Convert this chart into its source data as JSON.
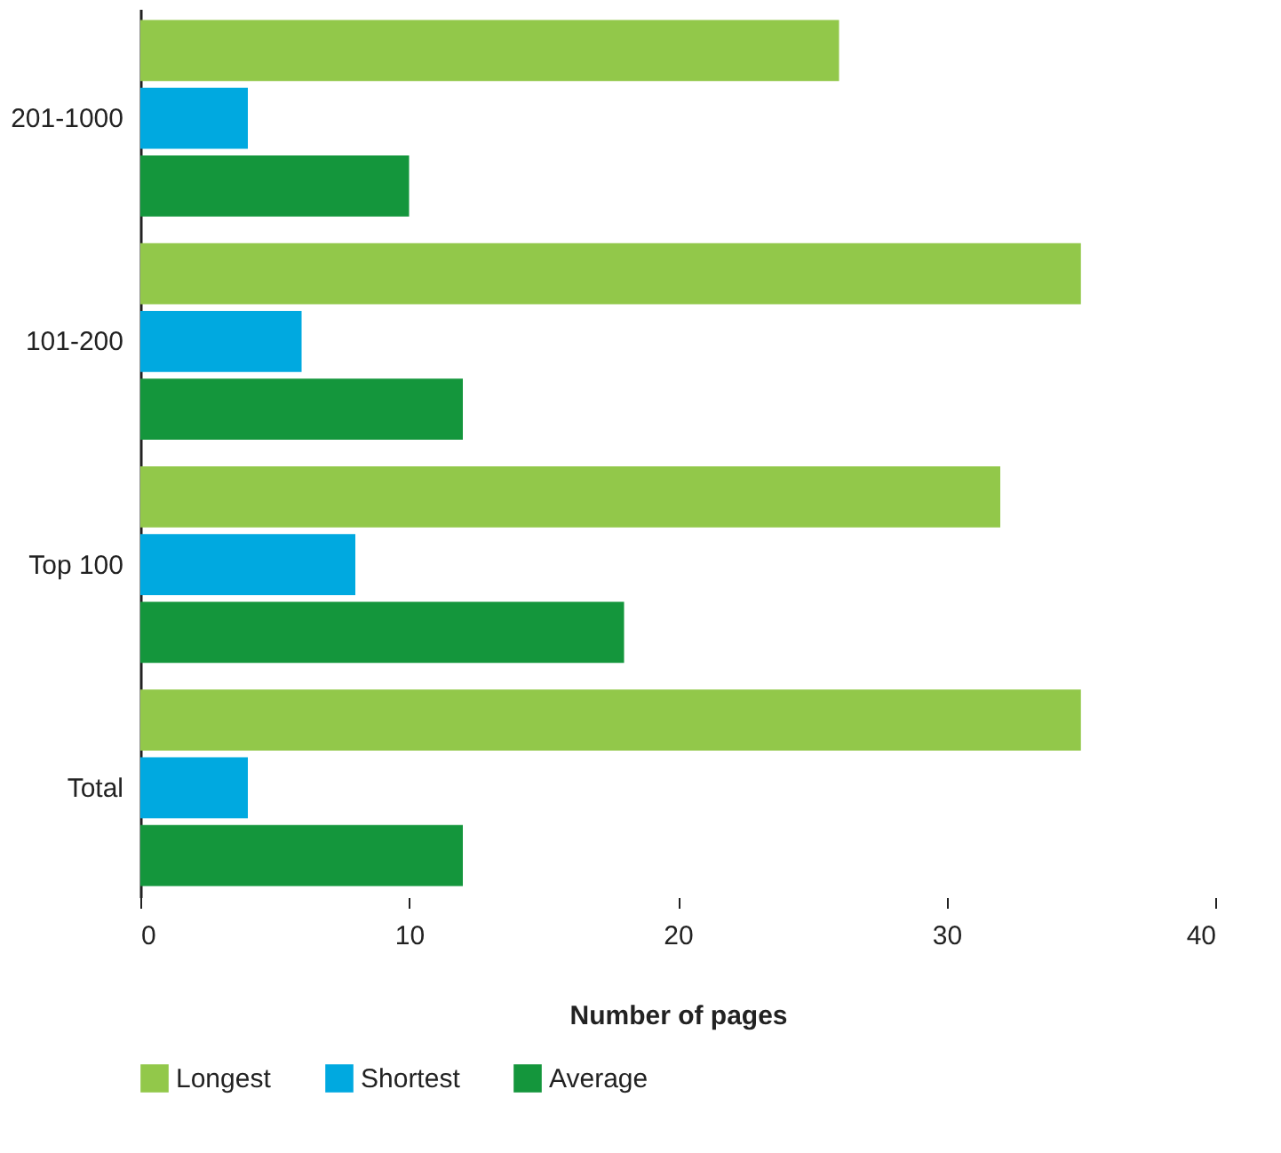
{
  "chart_data": {
    "type": "bar",
    "orientation": "horizontal",
    "categories": [
      "201-1000",
      "101-200",
      "Top 100",
      "Total"
    ],
    "series": [
      {
        "name": "Longest",
        "color": "#92c84a",
        "values": [
          26,
          35,
          32,
          35
        ]
      },
      {
        "name": "Shortest",
        "color": "#00a9e0",
        "values": [
          4,
          6,
          8,
          4
        ]
      },
      {
        "name": "Average",
        "color": "#14963c",
        "values": [
          10,
          12,
          18,
          12
        ]
      }
    ],
    "xlabel": "Number of pages",
    "xlim": [
      0,
      40
    ],
    "xticks": [
      0,
      10,
      20,
      30,
      40
    ],
    "grid": false,
    "legend": "bottom"
  }
}
